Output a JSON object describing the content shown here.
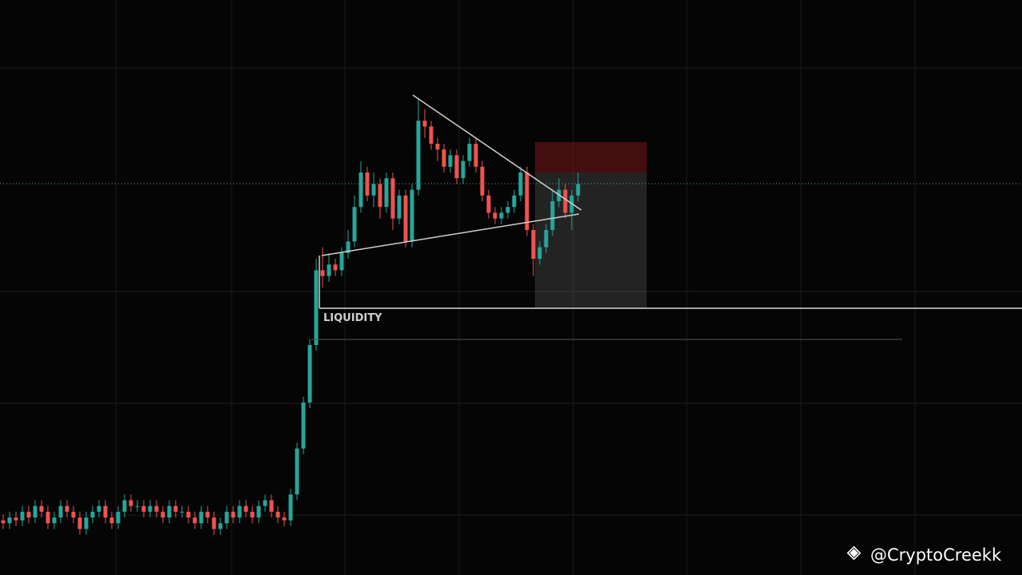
{
  "chart_data": {
    "type": "candlestick",
    "annotations": [
      "LIQUIDITY"
    ],
    "watermark": "@CryptoCreekk",
    "up_color": "#26a69a",
    "down_color": "#ef5350",
    "ylim": [
      0,
      100
    ],
    "open": [
      9.5,
      9,
      10,
      9.5,
      11,
      10,
      12,
      11,
      9,
      10,
      12,
      11,
      10,
      8,
      10,
      11,
      12,
      10,
      9,
      11,
      13,
      12,
      12,
      11,
      12,
      11,
      10,
      12,
      11,
      11,
      10,
      9,
      11,
      10,
      8,
      9,
      11,
      10,
      12,
      11,
      10,
      12,
      13,
      11,
      10,
      9.5,
      14,
      22,
      30,
      40,
      53,
      52,
      54,
      53,
      56,
      58,
      64,
      70,
      66,
      68,
      64,
      69,
      62,
      66,
      58,
      67,
      79,
      78,
      75,
      74,
      71,
      73,
      69,
      72,
      75,
      71,
      66,
      63,
      62,
      63,
      64,
      66,
      70,
      60,
      55,
      57,
      60,
      65,
      67,
      63,
      66
    ],
    "high": [
      10.5,
      11,
      11,
      12,
      12,
      13,
      13,
      12,
      11,
      13,
      13,
      12,
      11,
      11,
      12,
      13,
      13,
      11,
      12,
      14,
      14,
      13,
      13,
      13,
      13,
      12,
      13,
      13,
      12,
      12,
      11,
      12,
      12,
      11,
      10,
      12,
      12,
      13,
      13,
      12,
      13,
      14,
      14,
      12,
      11,
      15,
      23,
      31,
      41,
      55,
      57,
      56,
      55,
      57,
      60,
      66,
      72,
      71,
      70,
      69,
      70,
      70,
      67,
      67,
      68,
      83,
      81,
      79,
      76,
      75,
      74,
      74,
      73,
      76,
      76,
      72,
      67,
      64,
      64,
      65,
      67,
      71,
      71,
      61,
      58,
      61,
      67,
      69,
      68,
      67,
      70
    ],
    "low": [
      8,
      8,
      8.5,
      8.5,
      9,
      9,
      10,
      8,
      8,
      9,
      10,
      9,
      7,
      7,
      9,
      10,
      9,
      8,
      8,
      10,
      11,
      11,
      10,
      10,
      10,
      9,
      9,
      10,
      10,
      9,
      8,
      8,
      9,
      7,
      7,
      8,
      9,
      9,
      10,
      9,
      9,
      11,
      10,
      9,
      8.5,
      8.5,
      13,
      21,
      29,
      39,
      50,
      51,
      52,
      52,
      55,
      57,
      63,
      65,
      64,
      62,
      63,
      60,
      61,
      57,
      57,
      66,
      76,
      74,
      72,
      70,
      70,
      68,
      68,
      71,
      70,
      65,
      62,
      61,
      61,
      62,
      63,
      65,
      59,
      52,
      54,
      56,
      59,
      64,
      62,
      60,
      65
    ],
    "close": [
      9,
      10,
      9.5,
      11,
      10,
      12,
      11,
      9,
      10,
      12,
      11,
      10,
      8,
      10,
      11,
      12,
      10,
      9,
      11,
      13,
      12,
      12,
      11,
      12,
      11,
      10,
      12,
      11,
      11,
      10,
      9,
      11,
      10,
      8,
      9,
      11,
      10,
      12,
      11,
      10,
      12,
      13,
      11,
      10,
      9.5,
      14,
      22,
      30,
      40,
      53,
      52,
      54,
      53,
      56,
      58,
      64,
      70,
      66,
      68,
      64,
      69,
      62,
      66,
      58,
      67,
      79,
      78,
      75,
      74,
      71,
      73,
      69,
      72,
      75,
      71,
      66,
      63,
      62,
      63,
      64,
      66,
      70,
      60,
      55,
      57,
      60,
      65,
      67,
      63,
      66,
      68
    ]
  }
}
